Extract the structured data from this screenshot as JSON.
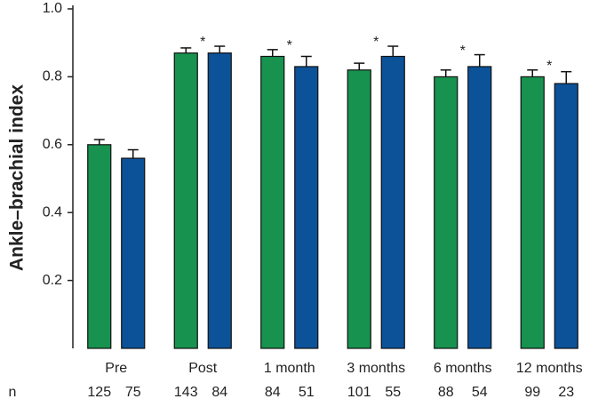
{
  "chart_data": {
    "type": "bar",
    "y_label": "Ankle–brachial index",
    "categories": [
      "Pre",
      "Post",
      "1 month",
      "3 months",
      "6 months",
      "12 months"
    ],
    "series": [
      {
        "color": "#17924f",
        "values": [
          0.6,
          0.87,
          0.86,
          0.82,
          0.8,
          0.8
        ],
        "errors": [
          0.015,
          0.015,
          0.02,
          0.02,
          0.02,
          0.02
        ],
        "n": [
          125,
          143,
          84,
          101,
          88,
          99
        ]
      },
      {
        "color": "#0c5299",
        "values": [
          0.56,
          0.87,
          0.83,
          0.86,
          0.83,
          0.78
        ],
        "errors": [
          0.025,
          0.02,
          0.03,
          0.03,
          0.035,
          0.035
        ],
        "n": [
          75,
          84,
          51,
          55,
          54,
          23
        ]
      }
    ],
    "significance": [
      null,
      "*",
      "*",
      "*",
      "*",
      "*"
    ],
    "n_label": "n",
    "ylim": [
      0,
      1
    ],
    "yticks": [
      0.2,
      0.4,
      0.6,
      0.8,
      {
        "value": 1,
        "label": "1.0"
      }
    ]
  }
}
